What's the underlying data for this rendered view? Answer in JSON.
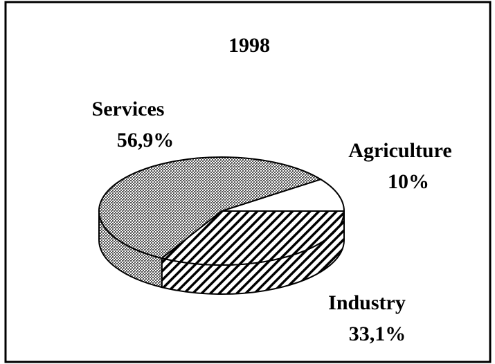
{
  "chart_data": {
    "type": "pie3d",
    "title": "1998",
    "categories": [
      "Agriculture",
      "Industry",
      "Services"
    ],
    "values": [
      10,
      33.1,
      56.9
    ],
    "value_labels": [
      "10%",
      "33,1%",
      "56,9%"
    ]
  }
}
